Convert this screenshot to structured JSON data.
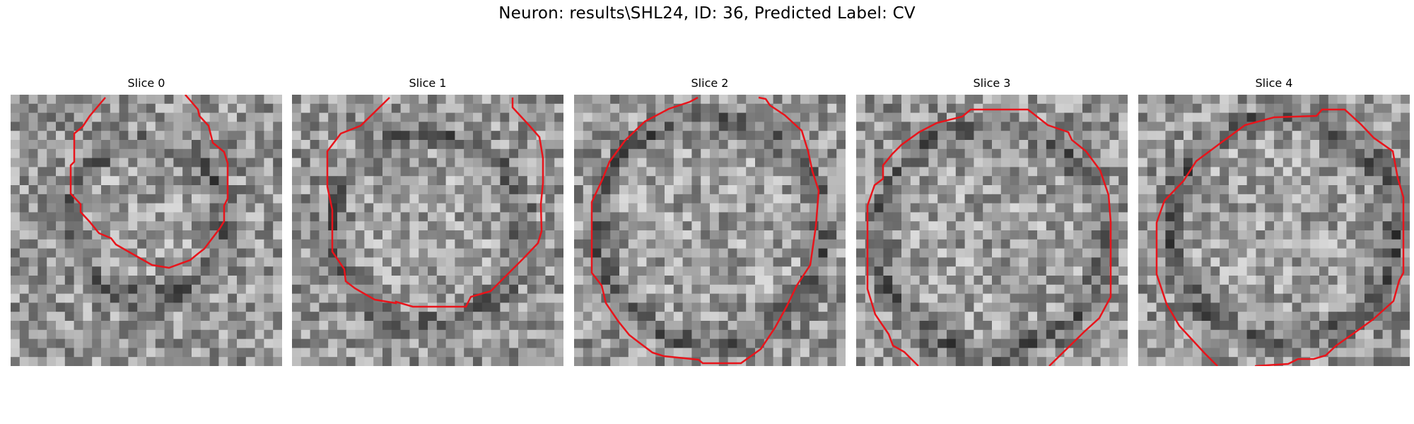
{
  "figure": {
    "suptitle": "Neuron: results\\SHL24, ID: 36, Predicted Label: CV",
    "colormap": "gray",
    "contour_color": "#e8141b"
  },
  "slices": [
    {
      "title": "Slice 0"
    },
    {
      "title": "Slice 1"
    },
    {
      "title": "Slice 2"
    },
    {
      "title": "Slice 3"
    },
    {
      "title": "Slice 4"
    }
  ]
}
